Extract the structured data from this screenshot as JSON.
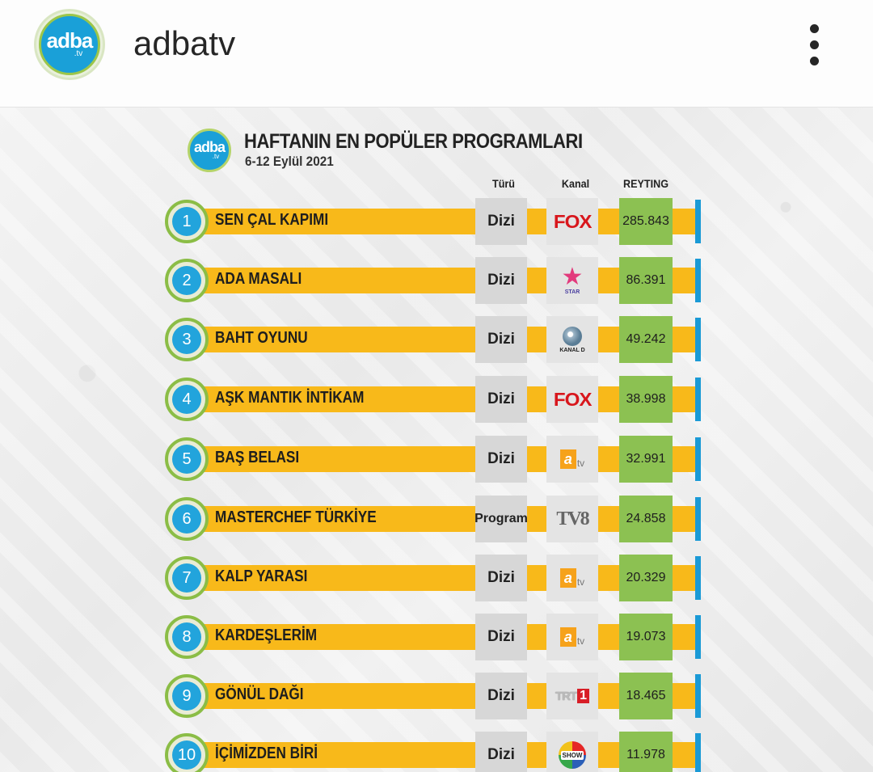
{
  "header": {
    "avatar_text": "adba",
    "avatar_sub": ".tv",
    "username": "adbatv",
    "more_icon": "vertical-ellipsis-icon"
  },
  "post": {
    "logo_text": "adba",
    "logo_sub": ".tv",
    "title": "HAFTANIN EN POPÜLER PROGRAMLARI",
    "date": "6-12 Eylül 2021",
    "columns": {
      "type": "Türü",
      "channel": "Kanal",
      "rating": "REYTING"
    },
    "colors": {
      "bar": "#f8b91a",
      "rating_bg": "#8cc152",
      "accent": "#22a4dc",
      "edge": "#1a9ad6"
    },
    "rows": [
      {
        "rank": "1",
        "name": "SEN ÇAL KAPIMI",
        "type": "Dizi",
        "channel": "FOX",
        "rating": "285.843"
      },
      {
        "rank": "2",
        "name": "ADA MASALI",
        "type": "Dizi",
        "channel": "STAR",
        "rating": "86.391"
      },
      {
        "rank": "3",
        "name": "BAHT OYUNU",
        "type": "Dizi",
        "channel": "KANAL D",
        "rating": "49.242"
      },
      {
        "rank": "4",
        "name": "AŞK MANTIK İNTİKAM",
        "type": "Dizi",
        "channel": "FOX",
        "rating": "38.998"
      },
      {
        "rank": "5",
        "name": "BAŞ BELASI",
        "type": "Dizi",
        "channel": "atv",
        "rating": "32.991"
      },
      {
        "rank": "6",
        "name": "MASTERCHEF TÜRKİYE",
        "type": "Program",
        "channel": "TV8",
        "rating": "24.858"
      },
      {
        "rank": "7",
        "name": "KALP YARASI",
        "type": "Dizi",
        "channel": "atv",
        "rating": "20.329"
      },
      {
        "rank": "8",
        "name": "KARDEŞLERİM",
        "type": "Dizi",
        "channel": "atv",
        "rating": "19.073"
      },
      {
        "rank": "9",
        "name": "GÖNÜL DAĞI",
        "type": "Dizi",
        "channel": "TRT 1",
        "rating": "18.465"
      },
      {
        "rank": "10",
        "name": "İÇİMİZDEN BİRİ",
        "type": "Dizi",
        "channel": "SHOW",
        "rating": "11.978"
      }
    ]
  }
}
